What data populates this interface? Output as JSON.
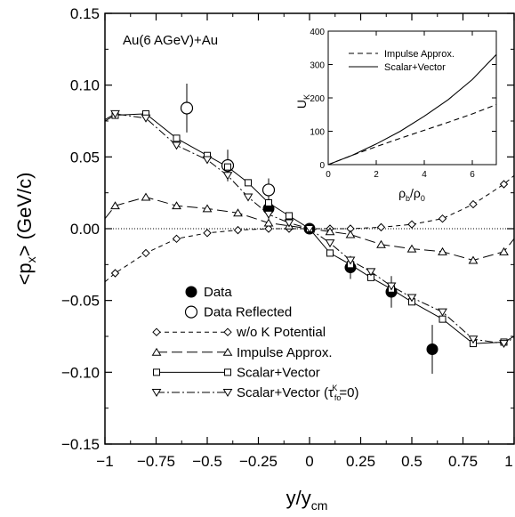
{
  "chart_data": {
    "type": "scatter",
    "annotation": "Au(6 AGeV)+Au",
    "xlabel": "y/y",
    "xlabel_sub": "cm",
    "ylabel_pre": "<p",
    "ylabel_sub": "x",
    "ylabel_post": "> (GeV/c)",
    "xlim": [
      -1,
      1
    ],
    "ylim": [
      -0.15,
      0.15
    ],
    "xticks": [
      -1,
      -0.75,
      -0.5,
      -0.25,
      0,
      0.25,
      0.5,
      0.75,
      1
    ],
    "xtick_labels": [
      "−1",
      "−0.75",
      "−0.5",
      "−0.25",
      "0",
      "0.25",
      "0.5",
      "0.75",
      "1"
    ],
    "yticks": [
      -0.15,
      -0.1,
      -0.05,
      0.0,
      0.05,
      0.1,
      0.15
    ],
    "ytick_labels": [
      "−0.15",
      "−0.10",
      "−0.05",
      "0.00",
      "0.05",
      "0.10",
      "0.15"
    ],
    "zero_line": true,
    "legend_position": "bottom-left",
    "series": [
      {
        "name": "Data",
        "style": "filled-circle",
        "points": [
          [
            -0.2,
            0.014,
            0.009
          ],
          [
            0.0,
            0.0,
            0.0
          ],
          [
            0.2,
            -0.027,
            0.008
          ],
          [
            0.4,
            -0.044,
            0.011
          ],
          [
            0.6,
            -0.084,
            0.017
          ]
        ]
      },
      {
        "name": "Data  Reflected",
        "style": "open-circle",
        "points": [
          [
            -0.6,
            0.084,
            0.017
          ],
          [
            -0.4,
            0.044,
            0.011
          ],
          [
            -0.2,
            0.027,
            0.008
          ]
        ]
      },
      {
        "name": "w/o K Potential",
        "style": "diamond-dashed",
        "points": [
          [
            -0.95,
            -0.031
          ],
          [
            -0.8,
            -0.017
          ],
          [
            -0.65,
            -0.007
          ],
          [
            -0.5,
            -0.003
          ],
          [
            -0.35,
            -0.001
          ],
          [
            -0.2,
            0.0
          ],
          [
            -0.1,
            0.0
          ],
          [
            0.0,
            0.0
          ],
          [
            0.1,
            0.0
          ],
          [
            0.2,
            0.0
          ],
          [
            0.35,
            0.001
          ],
          [
            0.5,
            0.003
          ],
          [
            0.65,
            0.007
          ],
          [
            0.8,
            0.017
          ],
          [
            0.95,
            0.031
          ]
        ],
        "line_extends_to": [
          [
            -1.0,
            -0.037
          ],
          [
            1.0,
            0.037
          ]
        ]
      },
      {
        "name": "Impulse Approx.",
        "style": "triangle-up-longdash",
        "points": [
          [
            -0.95,
            0.016
          ],
          [
            -0.8,
            0.022
          ],
          [
            -0.65,
            0.016
          ],
          [
            -0.5,
            0.014
          ],
          [
            -0.35,
            0.011
          ],
          [
            -0.2,
            0.004
          ],
          [
            -0.1,
            0.002
          ],
          [
            0.0,
            0.0
          ],
          [
            0.1,
            -0.002
          ],
          [
            0.2,
            -0.004
          ],
          [
            0.35,
            -0.011
          ],
          [
            0.5,
            -0.014
          ],
          [
            0.65,
            -0.016
          ],
          [
            0.8,
            -0.022
          ],
          [
            0.95,
            -0.016
          ]
        ],
        "line_extends_to": [
          [
            -1.0,
            0.007
          ],
          [
            1.0,
            -0.007
          ]
        ]
      },
      {
        "name": "Scalar+Vector",
        "style": "square-solid",
        "points": [
          [
            -0.95,
            0.079
          ],
          [
            -0.8,
            0.08
          ],
          [
            -0.65,
            0.063
          ],
          [
            -0.5,
            0.051
          ],
          [
            -0.4,
            0.043
          ],
          [
            -0.3,
            0.032
          ],
          [
            -0.2,
            0.018
          ],
          [
            -0.1,
            0.009
          ],
          [
            0.0,
            0.0
          ],
          [
            0.1,
            -0.017
          ],
          [
            0.2,
            -0.025
          ],
          [
            0.3,
            -0.034
          ],
          [
            0.4,
            -0.042
          ],
          [
            0.5,
            -0.051
          ],
          [
            0.65,
            -0.063
          ],
          [
            0.8,
            -0.08
          ],
          [
            0.95,
            -0.079
          ]
        ],
        "line_extends_to": [
          [
            -1.0,
            0.075
          ],
          [
            1.0,
            -0.075
          ]
        ]
      },
      {
        "name": "Scalar+Vector (τ",
        "name_sup": "K",
        "name_sub": "fo",
        "name_post": "=0)",
        "style": "triangle-down-dashdot",
        "points": [
          [
            -0.95,
            0.08
          ],
          [
            -0.8,
            0.077
          ],
          [
            -0.65,
            0.058
          ],
          [
            -0.5,
            0.048
          ],
          [
            -0.4,
            0.037
          ],
          [
            -0.3,
            0.022
          ],
          [
            -0.2,
            0.01
          ],
          [
            -0.1,
            0.004
          ],
          [
            0.0,
            0.0
          ],
          [
            0.1,
            -0.01
          ],
          [
            0.2,
            -0.022
          ],
          [
            0.3,
            -0.03
          ],
          [
            0.4,
            -0.04
          ],
          [
            0.5,
            -0.048
          ],
          [
            0.65,
            -0.058
          ],
          [
            0.8,
            -0.077
          ],
          [
            0.95,
            -0.08
          ]
        ],
        "line_extends_to": [
          [
            -1.0,
            0.076
          ],
          [
            1.0,
            -0.076
          ]
        ]
      }
    ],
    "inset": {
      "type": "line",
      "xlabel_main": "ρ",
      "xlabel_sub1": "b",
      "xlabel_mid": "/ρ",
      "xlabel_sub2": "0",
      "ylabel_main": "U",
      "ylabel_sub": "K",
      "xlim": [
        0,
        7
      ],
      "ylim": [
        0,
        400
      ],
      "xticks": [
        0,
        2,
        4,
        6
      ],
      "xtick_labels": [
        "0",
        "2",
        "4",
        "6"
      ],
      "yticks": [
        0,
        100,
        200,
        300,
        400
      ],
      "ytick_labels": [
        "0",
        "100",
        "200",
        "300",
        "400"
      ],
      "series": [
        {
          "name": "Impulse Approx.",
          "style": "dashed",
          "x": [
            0,
            1,
            2,
            3,
            4,
            5,
            6,
            7
          ],
          "y": [
            0,
            28,
            54,
            79,
            103,
            127,
            152,
            180
          ]
        },
        {
          "name": "Scalar+Vector",
          "style": "solid",
          "x": [
            0,
            1,
            2,
            3,
            4,
            5,
            6,
            7
          ],
          "y": [
            0,
            28,
            62,
            100,
            145,
            195,
            255,
            330
          ]
        }
      ]
    }
  }
}
